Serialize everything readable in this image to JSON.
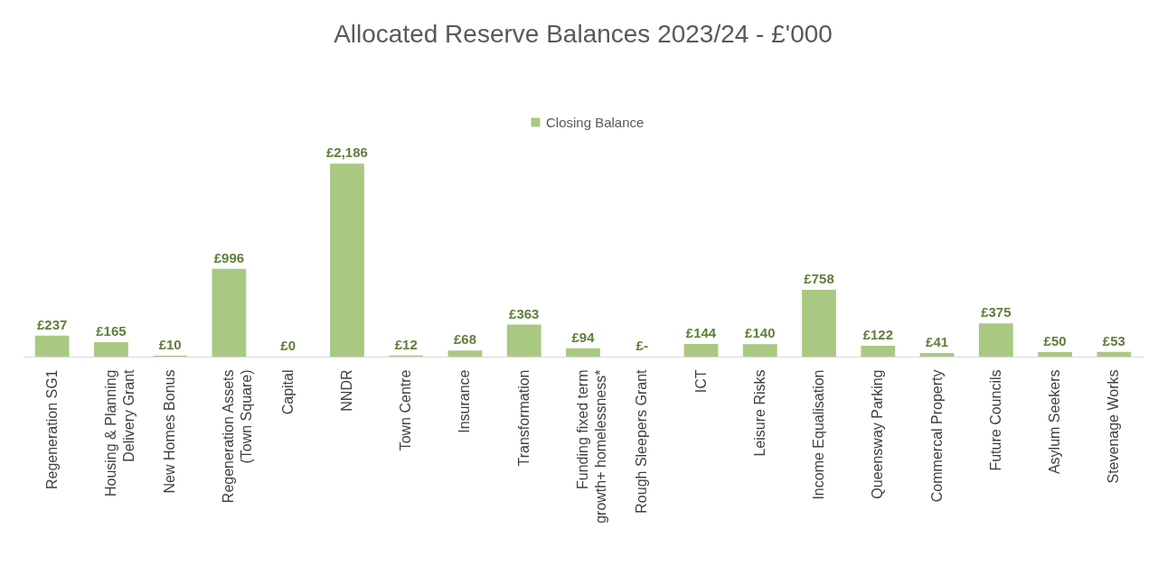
{
  "chart_data": {
    "type": "bar",
    "title": "Allocated Reserve Balances 2023/24 - £'000",
    "categories": [
      "Regeneration SG1",
      "Housing & Planning Delivery Grant",
      "New Homes Bonus",
      "Regeneration Assets (Town Square)",
      "Capital",
      "NNDR",
      "Town Centre",
      "Insurance",
      "Transformation",
      "Funding fixed term growth+ homelessness*",
      "Rough Sleepers Grant",
      "ICT",
      "Leisure Risks",
      "Income Equalisation",
      "Queensway Parking",
      "Commercal Property",
      "Future Councils",
      "Asylum Seekers",
      "Stevenage Works"
    ],
    "series": [
      {
        "name": "Closing Balance",
        "color": "#a9c983",
        "values": [
          237,
          165,
          10,
          996,
          0,
          2186,
          12,
          68,
          363,
          94,
          0,
          144,
          140,
          758,
          122,
          41,
          375,
          50,
          53
        ],
        "value_labels": [
          "£237",
          "£165",
          "£10",
          "£996",
          "£0",
          "£2,186",
          "£12",
          "£68",
          "£363",
          "£94",
          "£-",
          "£144",
          "£140",
          "£758",
          "£122",
          "£41",
          "£375",
          "£50",
          "£53"
        ]
      }
    ],
    "legend": "top"
  }
}
